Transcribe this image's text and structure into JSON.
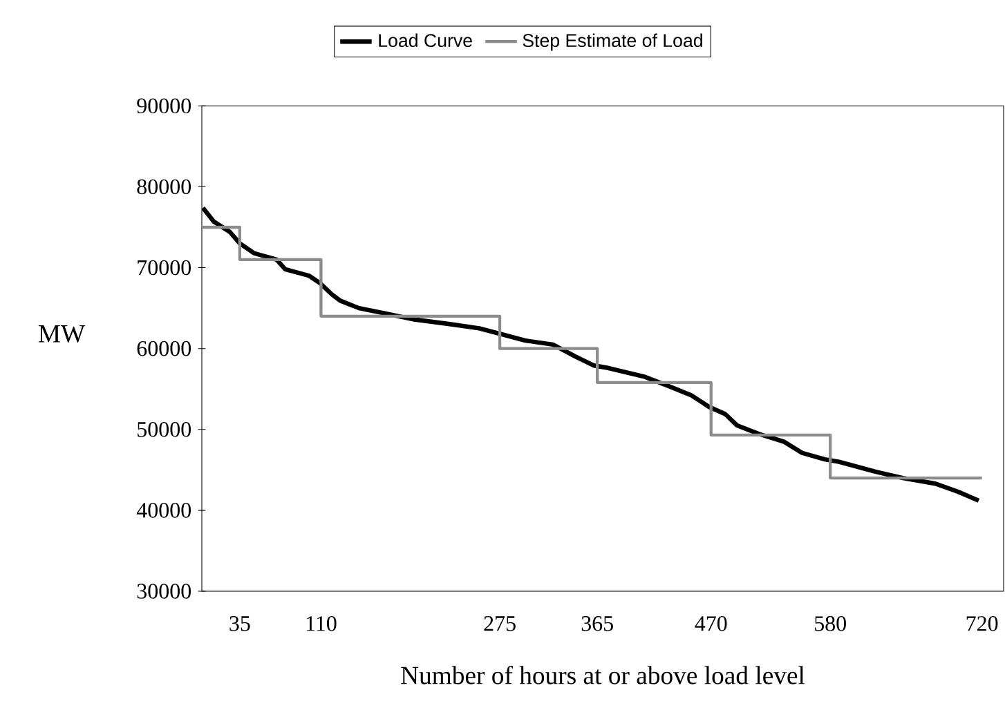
{
  "chart_data": {
    "type": "line",
    "xlabel": "Number of hours at or above load level",
    "ylabel": "MW",
    "xlim": [
      0,
      740
    ],
    "xticks": [
      35,
      110,
      275,
      365,
      470,
      580,
      720
    ],
    "ylim": [
      30000,
      90000
    ],
    "yticks": [
      30000,
      40000,
      50000,
      60000,
      70000,
      80000,
      90000
    ],
    "legend": "top",
    "grid": false,
    "marker": "none",
    "series": [
      {
        "name": "Load Curve",
        "type": "line",
        "color": "#000000",
        "x": [
          1,
          11,
          26,
          35,
          48,
          69,
          77,
          99,
          109,
          120,
          128,
          145,
          171,
          196,
          230,
          256,
          273,
          298,
          324,
          345,
          362,
          375,
          409,
          430,
          452,
          468,
          483,
          494,
          515,
          537,
          554,
          575,
          588,
          621,
          647,
          677,
          698,
          717
        ],
        "values": [
          77400,
          75700,
          74400,
          73000,
          71800,
          71000,
          69800,
          69000,
          68100,
          66700,
          65900,
          65000,
          64300,
          63600,
          63000,
          62500,
          61900,
          61000,
          60500,
          59000,
          57900,
          57600,
          56500,
          55400,
          54200,
          52800,
          51900,
          50500,
          49400,
          48500,
          47100,
          46300,
          46000,
          44800,
          44000,
          43300,
          42300,
          41200
        ]
      },
      {
        "name": "Step Estimate of Load",
        "type": "step",
        "color": "#8c8c8c",
        "x": [
          0,
          35,
          110,
          275,
          365,
          470,
          580,
          720
        ],
        "values": [
          75000,
          71000,
          64000,
          60000,
          55800,
          49300,
          44000,
          44000
        ]
      }
    ]
  }
}
